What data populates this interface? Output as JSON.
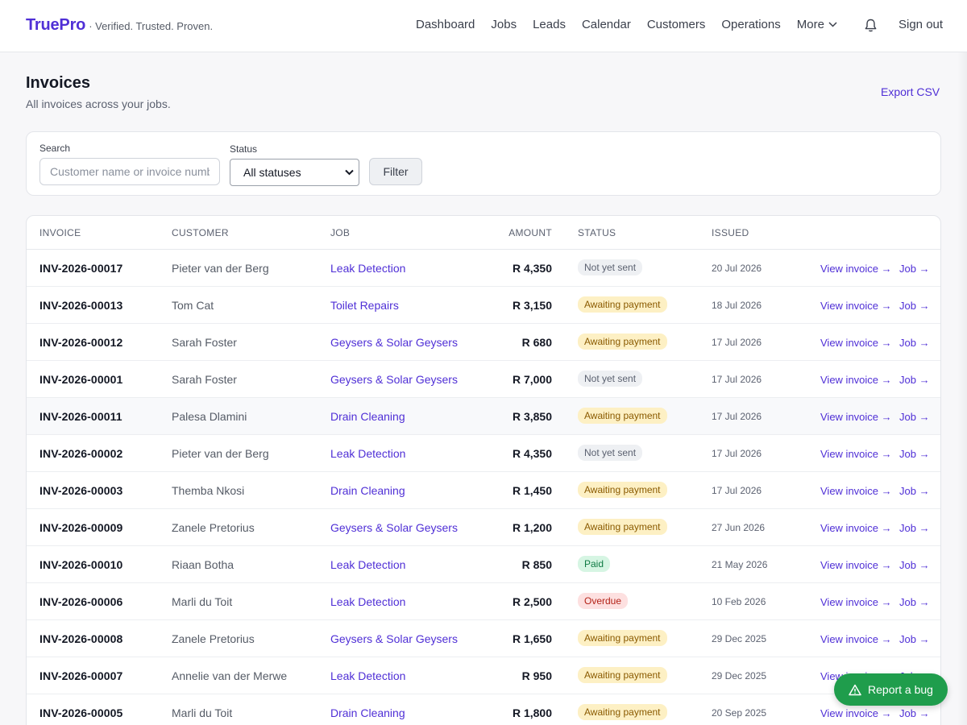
{
  "header": {
    "brand": "TruePro",
    "tagline": "· Verified. Trusted. Proven.",
    "nav": [
      "Dashboard",
      "Jobs",
      "Leads",
      "Calendar",
      "Customers",
      "Operations"
    ],
    "more_label": "More",
    "bell_icon": "bell-icon",
    "sign_out": "Sign out"
  },
  "page": {
    "title": "Invoices",
    "subtitle": "All invoices across your jobs.",
    "export_label": "Export CSV"
  },
  "filters": {
    "search_label": "Search",
    "search_placeholder": "Customer name or invoice number",
    "status_label": "Status",
    "status_value": "All statuses",
    "filter_button": "Filter"
  },
  "table": {
    "columns": {
      "invoice": "INVOICE",
      "customer": "CUSTOMER",
      "job": "JOB",
      "amount": "AMOUNT",
      "status": "STATUS",
      "issued": "ISSUED"
    },
    "view_invoice_label": "View invoice →",
    "job_link_label": "Job →",
    "rows": [
      {
        "invoice": "INV-2026-00017",
        "customer": "Pieter van der Berg",
        "job": "Leak Detection",
        "amount": "R 4,350",
        "status": "Not yet sent",
        "status_kind": "notsent",
        "issued": "20 Jul 2026"
      },
      {
        "invoice": "INV-2026-00013",
        "customer": "Tom Cat",
        "job": "Toilet Repairs",
        "amount": "R 3,150",
        "status": "Awaiting payment",
        "status_kind": "awaiting",
        "issued": "18 Jul 2026"
      },
      {
        "invoice": "INV-2026-00012",
        "customer": "Sarah Foster",
        "job": "Geysers & Solar Geysers",
        "amount": "R 680",
        "status": "Awaiting payment",
        "status_kind": "awaiting",
        "issued": "17 Jul 2026"
      },
      {
        "invoice": "INV-2026-00001",
        "customer": "Sarah Foster",
        "job": "Geysers & Solar Geysers",
        "amount": "R 7,000",
        "status": "Not yet sent",
        "status_kind": "notsent",
        "issued": "17 Jul 2026"
      },
      {
        "invoice": "INV-2026-00011",
        "customer": "Palesa Dlamini",
        "job": "Drain Cleaning",
        "amount": "R 3,850",
        "status": "Awaiting payment",
        "status_kind": "awaiting",
        "issued": "17 Jul 2026"
      },
      {
        "invoice": "INV-2026-00002",
        "customer": "Pieter van der Berg",
        "job": "Leak Detection",
        "amount": "R 4,350",
        "status": "Not yet sent",
        "status_kind": "notsent",
        "issued": "17 Jul 2026"
      },
      {
        "invoice": "INV-2026-00003",
        "customer": "Themba Nkosi",
        "job": "Drain Cleaning",
        "amount": "R 1,450",
        "status": "Awaiting payment",
        "status_kind": "awaiting",
        "issued": "17 Jul 2026"
      },
      {
        "invoice": "INV-2026-00009",
        "customer": "Zanele Pretorius",
        "job": "Geysers & Solar Geysers",
        "amount": "R 1,200",
        "status": "Awaiting payment",
        "status_kind": "awaiting",
        "issued": "27 Jun 2026"
      },
      {
        "invoice": "INV-2026-00010",
        "customer": "Riaan Botha",
        "job": "Leak Detection",
        "amount": "R 850",
        "status": "Paid",
        "status_kind": "paid",
        "issued": "21 May 2026"
      },
      {
        "invoice": "INV-2026-00006",
        "customer": "Marli du Toit",
        "job": "Leak Detection",
        "amount": "R 2,500",
        "status": "Overdue",
        "status_kind": "overdue",
        "issued": "10 Feb 2026"
      },
      {
        "invoice": "INV-2026-00008",
        "customer": "Zanele Pretorius",
        "job": "Geysers & Solar Geysers",
        "amount": "R 1,650",
        "status": "Awaiting payment",
        "status_kind": "awaiting",
        "issued": "29 Dec 2025"
      },
      {
        "invoice": "INV-2026-00007",
        "customer": "Annelie van der Merwe",
        "job": "Leak Detection",
        "amount": "R 950",
        "status": "Awaiting payment",
        "status_kind": "awaiting",
        "issued": "29 Dec 2025"
      },
      {
        "invoice": "INV-2026-00005",
        "customer": "Marli du Toit",
        "job": "Drain Cleaning",
        "amount": "R 1,800",
        "status": "Awaiting payment",
        "status_kind": "awaiting",
        "issued": "20 Sep 2025"
      }
    ]
  },
  "report_bug": {
    "label": "Report a bug",
    "icon": "warning-triangle-icon",
    "color": "#1f9d4c"
  },
  "colors": {
    "accent": "#4f2fd6",
    "awaiting": "#fdf0c4",
    "paid": "#d6f5e3",
    "overdue": "#fde0e0",
    "notsent": "#eef0f3"
  }
}
